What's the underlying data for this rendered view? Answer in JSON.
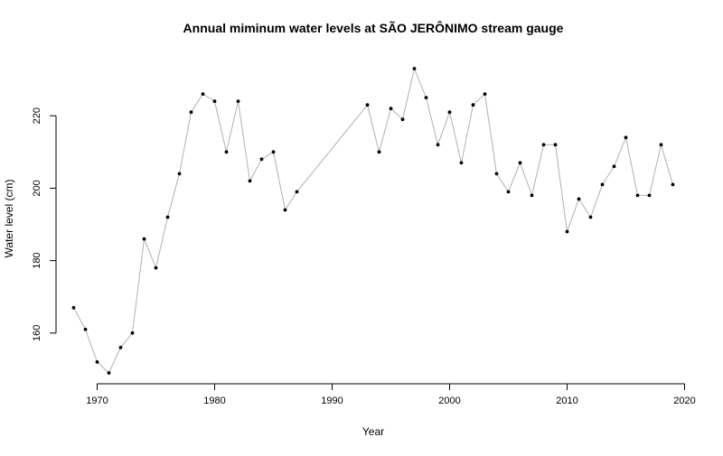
{
  "chart_data": {
    "type": "line",
    "title": "Annual miminum water levels at SÃO JERÔNIMO stream gauge",
    "xlabel": "Year",
    "ylabel": "Water level (cm)",
    "xlim": [
      1966.5,
      2020.5
    ],
    "ylim": [
      146,
      237
    ],
    "x_ticks": [
      1970,
      1980,
      1990,
      2000,
      2010,
      2020
    ],
    "y_ticks": [
      160,
      180,
      200,
      220
    ],
    "grid": false,
    "legend": "none",
    "line_color": "#b0b0b0",
    "marker_color": "#000000",
    "series": [
      {
        "x": [
          1968,
          1969,
          1970,
          1971,
          1972,
          1973,
          1974,
          1975,
          1976,
          1977,
          1978,
          1979,
          1980,
          1981,
          1982,
          1983,
          1984,
          1985,
          1986,
          1987,
          1993,
          1994,
          1995,
          1996,
          1997,
          1998,
          1999,
          2000,
          2001,
          2002,
          2003,
          2004,
          2005,
          2006,
          2007,
          2008,
          2009,
          2010,
          2011,
          2012,
          2013,
          2014,
          2015,
          2016,
          2017,
          2018,
          2019
        ],
        "values": [
          167,
          161,
          152,
          149,
          156,
          160,
          186,
          178,
          192,
          204,
          221,
          226,
          224,
          210,
          224,
          202,
          208,
          210,
          194,
          199,
          223,
          210,
          222,
          219,
          233,
          225,
          212,
          221,
          207,
          223,
          226,
          204,
          199,
          207,
          198,
          212,
          212,
          188,
          197,
          192,
          201,
          206,
          214,
          198,
          198,
          212,
          201
        ]
      }
    ]
  }
}
